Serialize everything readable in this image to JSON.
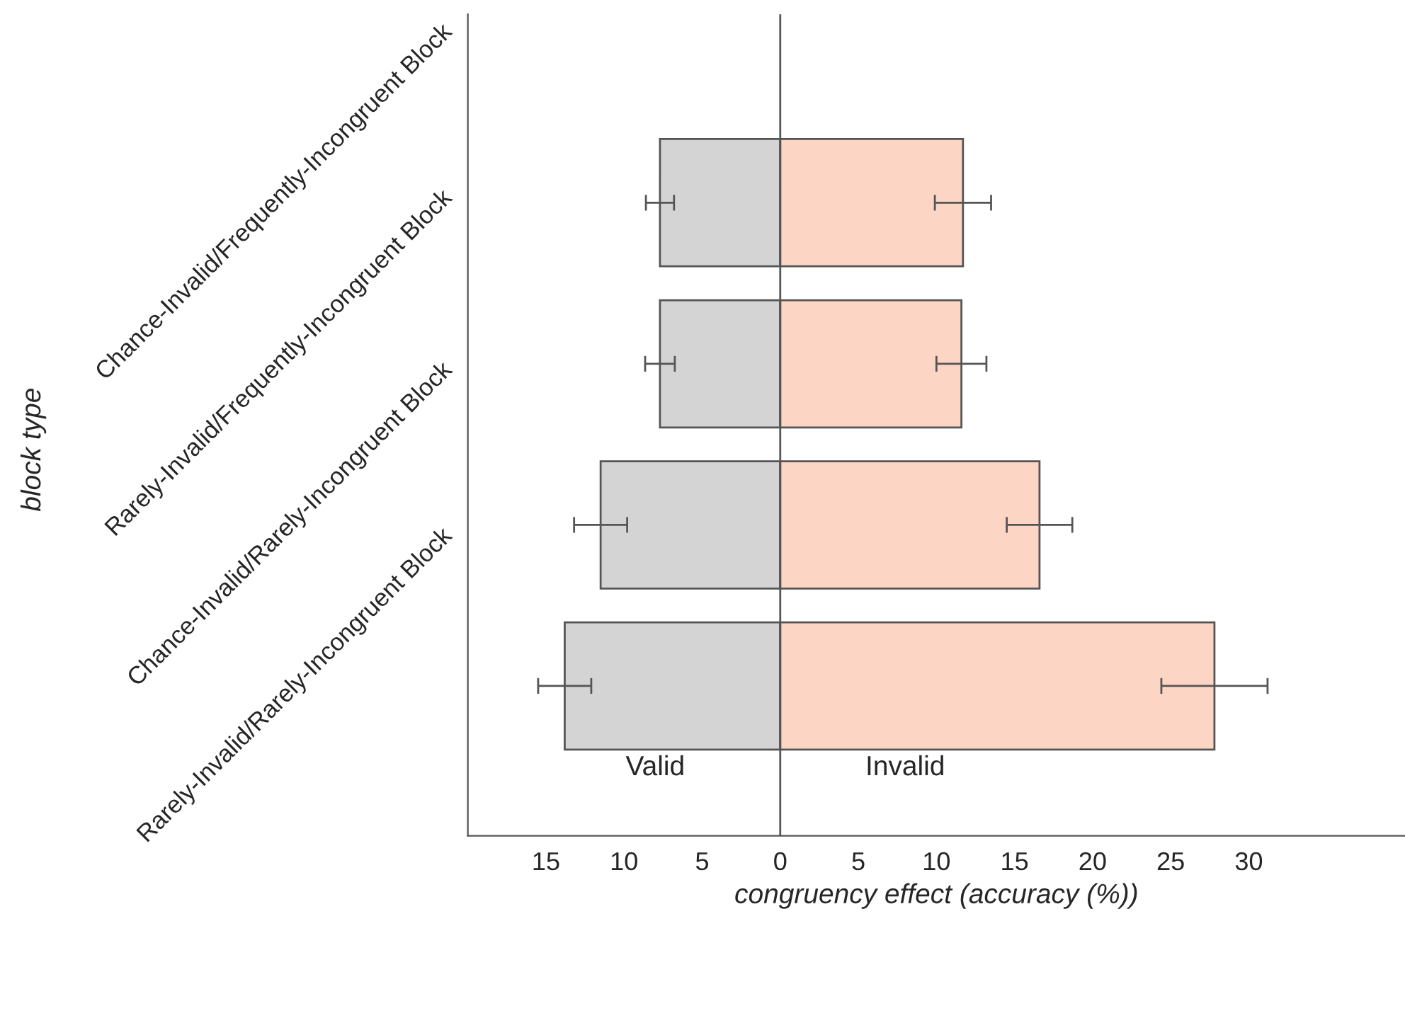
{
  "chart_data": {
    "type": "bar",
    "orientation": "horizontal",
    "xlabel": "congruency effect (accuracy (%))",
    "ylabel": "block type",
    "categories": [
      "Chance-Invalid/Frequently-Incongruent Block",
      "Rarely-Invalid/Frequently-Incongruent Block",
      "Chance-Invalid/Rarely-Incongruent Block",
      "Rarely-Invalid/Rarely-Incongruent Block"
    ],
    "series": [
      {
        "name": "Valid",
        "color": "#d4d4d4",
        "values": [
          -7.7,
          -7.7,
          -11.5,
          -13.8
        ],
        "errors": [
          0.9,
          0.95,
          1.7,
          1.7
        ]
      },
      {
        "name": "Invalid",
        "color": "#fdd5c5",
        "values": [
          11.7,
          11.6,
          16.6,
          27.8
        ],
        "errors": [
          1.8,
          1.6,
          2.1,
          3.4
        ]
      }
    ],
    "stacked": true,
    "xlim": [
      -20,
      40
    ],
    "xticks": [
      {
        "value": -15,
        "label": "15"
      },
      {
        "value": -10,
        "label": "10"
      },
      {
        "value": -5,
        "label": "5"
      },
      0,
      5,
      10,
      15,
      20,
      25,
      30
    ],
    "ref_lines": [
      {
        "axis": "x",
        "value": 0,
        "color": "#555555"
      }
    ],
    "grid": false,
    "legend": false
  }
}
